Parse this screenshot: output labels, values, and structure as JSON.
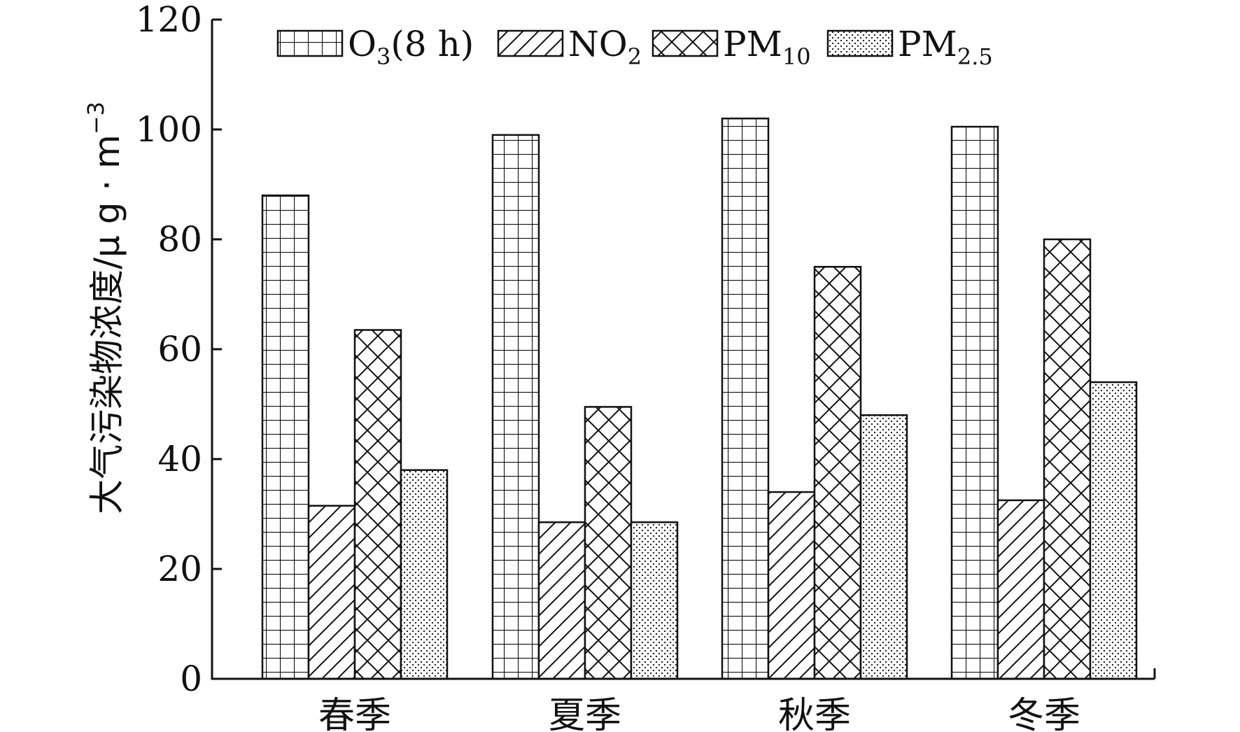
{
  "chart_data": {
    "type": "bar",
    "categories": [
      "春季",
      "夏季",
      "秋季",
      "冬季"
    ],
    "series": [
      {
        "name": "O3(8 h)",
        "name_main": "O",
        "name_sub": "3",
        "name_suffix": "(8 h)",
        "pattern": "grid",
        "values": [
          88,
          99,
          102,
          100.5
        ]
      },
      {
        "name": "NO2",
        "name_main": "NO",
        "name_sub": "2",
        "name_suffix": "",
        "pattern": "diagonal",
        "values": [
          31.5,
          28.5,
          34,
          32.5
        ]
      },
      {
        "name": "PM10",
        "name_main": "PM",
        "name_sub": "10",
        "name_suffix": "",
        "pattern": "crosshatch",
        "values": [
          63.5,
          49.5,
          75,
          80
        ]
      },
      {
        "name": "PM2.5",
        "name_main": "PM",
        "name_sub": "2.5",
        "name_suffix": "",
        "pattern": "dots",
        "values": [
          38,
          28.5,
          48,
          54
        ]
      }
    ],
    "title": "",
    "xlabel": "",
    "ylabel": "大气污染物浓度/μ g · m",
    "ylabel_sup": "−3",
    "ylim": [
      0,
      120
    ],
    "yticks": [
      "0",
      "20",
      "40",
      "60",
      "80",
      "100",
      "120"
    ],
    "grid": false,
    "legend_position": "top",
    "colors": {
      "stroke": "#111111",
      "fill": "#ffffff"
    }
  }
}
